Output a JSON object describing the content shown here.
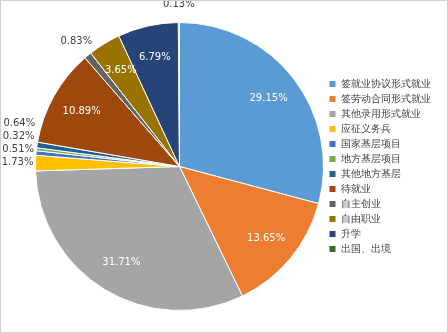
{
  "chart_data": {
    "type": "pie",
    "categories": [
      "签就业协议形式就业",
      "签劳动合同形式就业",
      "其他录用形式就业",
      "应征义务兵",
      "国家基层项目",
      "地方基层项目",
      "其他地方基层",
      "待就业",
      "自主创业",
      "自由职业",
      "升学",
      "出国、出境"
    ],
    "values": [
      29.15,
      13.65,
      31.71,
      1.73,
      0.51,
      0.32,
      0.64,
      10.89,
      0.83,
      3.65,
      6.79,
      0.13
    ],
    "value_labels": [
      "29.15%",
      "13.65%",
      "31.71%",
      "1.73%",
      "0.51%",
      "0.32%",
      "0.64%",
      "10.89%",
      "0.83%",
      "3.65%",
      "6.79%",
      "0.13%"
    ],
    "colors": [
      "#5b9bd5",
      "#ed7d31",
      "#a5a5a5",
      "#ffc000",
      "#4472c4",
      "#70ad47",
      "#255e91",
      "#9e480e",
      "#636363",
      "#997300",
      "#264478",
      "#43682b"
    ],
    "legend": "right",
    "data_labels": true
  }
}
